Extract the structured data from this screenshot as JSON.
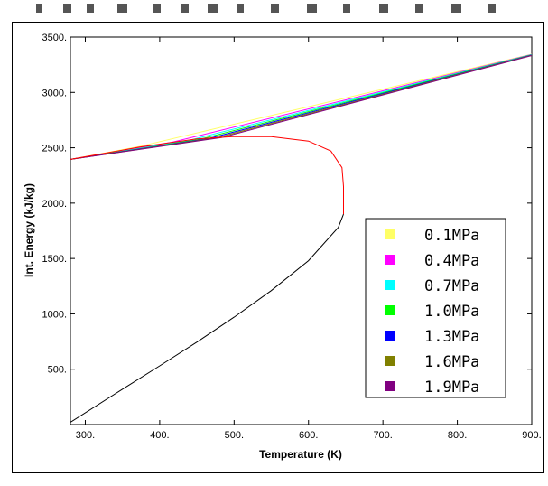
{
  "chart_data": {
    "type": "line",
    "title": "",
    "xlabel": "Temperature (K)",
    "ylabel": "Int. Energy (kJ/kg)",
    "xlim": [
      280,
      900
    ],
    "ylim": [
      0,
      3500
    ],
    "x_ticks": [
      300,
      400,
      500,
      600,
      700,
      800,
      900
    ],
    "x_tick_labels": [
      "300.",
      "400.",
      "500.",
      "600.",
      "700.",
      "800.",
      "900."
    ],
    "y_ticks": [
      500,
      1000,
      1500,
      2000,
      2500,
      3000,
      3500
    ],
    "y_tick_labels": [
      "500.",
      "1000.",
      "1500.",
      "2000.",
      "2500.",
      "3000.",
      "3500."
    ],
    "grid": false,
    "legend_position": "bottom-right",
    "series": [
      {
        "name": "0.1MPa",
        "color": "#ffff66",
        "x": [
          280,
          372,
          900
        ],
        "y": [
          2395,
          2510,
          3345
        ]
      },
      {
        "name": "0.4MPa",
        "color": "#ff00ff",
        "x": [
          280,
          417,
          900
        ],
        "y": [
          2395,
          2550,
          3343
        ]
      },
      {
        "name": "0.7MPa",
        "color": "#00ffff",
        "x": [
          280,
          438,
          900
        ],
        "y": [
          2395,
          2565,
          3341
        ]
      },
      {
        "name": "1.0MPa",
        "color": "#00ff00",
        "x": [
          280,
          453,
          900
        ],
        "y": [
          2395,
          2575,
          3339
        ]
      },
      {
        "name": "1.3MPa",
        "color": "#0000ff",
        "x": [
          280,
          465,
          900
        ],
        "y": [
          2395,
          2582,
          3337
        ]
      },
      {
        "name": "1.6MPa",
        "color": "#808000",
        "x": [
          280,
          475,
          900
        ],
        "y": [
          2395,
          2588,
          3335
        ]
      },
      {
        "name": "1.9MPa",
        "color": "#800080",
        "x": [
          280,
          483,
          900
        ],
        "y": [
          2395,
          2592,
          3333
        ]
      }
    ],
    "liquid_line": {
      "color": "#000000",
      "x": [
        280,
        350,
        400,
        450,
        500,
        550,
        600,
        640,
        647
      ],
      "y": [
        20,
        320,
        530,
        745,
        970,
        1210,
        1480,
        1780,
        1900
      ]
    },
    "saturated_vapor_line": {
      "color": "#ff0000",
      "x": [
        280,
        373,
        450,
        500,
        550,
        600,
        630,
        645,
        647
      ],
      "y": [
        2395,
        2506,
        2580,
        2602,
        2600,
        2560,
        2470,
        2320,
        2150
      ]
    },
    "critical_segment": {
      "color": "#ff0000",
      "x": [
        647,
        647
      ],
      "y": [
        1900,
        2150
      ]
    }
  }
}
